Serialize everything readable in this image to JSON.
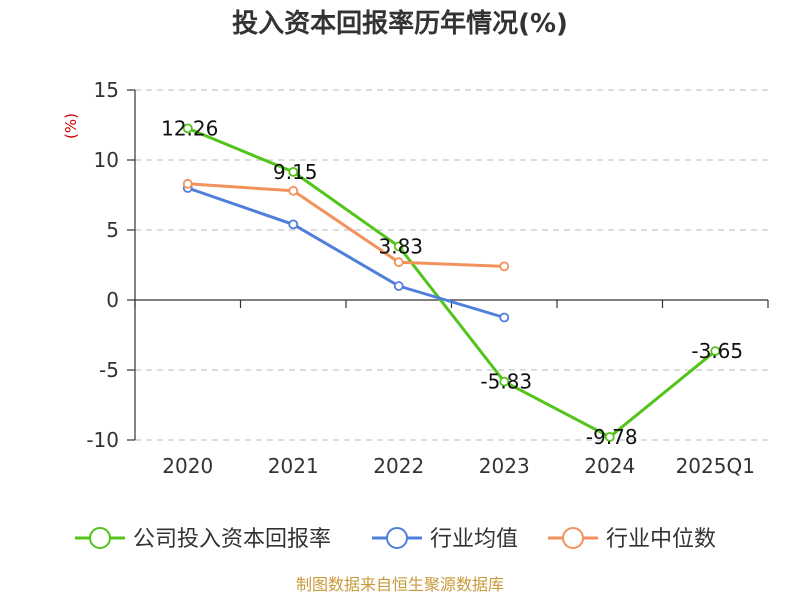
{
  "chart_data": {
    "type": "line",
    "title": "投入资本回报率历年情况(%)",
    "ylabel": "(%)",
    "categories": [
      "2020",
      "2021",
      "2022",
      "2023",
      "2024",
      "2025Q1"
    ],
    "ylim": [
      -10,
      15
    ],
    "yticks": [
      15,
      10,
      5,
      0,
      -5,
      -10
    ],
    "grid": true,
    "legend_position": "bottom",
    "series": [
      {
        "name": "公司投入资本回报率",
        "color": "#52c41a",
        "values": [
          12.26,
          9.15,
          3.83,
          -5.83,
          -9.78,
          -3.65
        ],
        "labels": [
          "12.26",
          "9.15",
          "3.83",
          "-5.83",
          "-9.78",
          "-3.65"
        ]
      },
      {
        "name": "行业均值",
        "color": "#4f7fdb",
        "values": [
          8.0,
          5.4,
          1.0,
          -1.25,
          null,
          null
        ]
      },
      {
        "name": "行业中位数",
        "color": "#f4925e",
        "values": [
          8.3,
          7.8,
          2.7,
          2.4,
          null,
          null
        ]
      }
    ]
  },
  "source": "制图数据来自恒生聚源数据库"
}
